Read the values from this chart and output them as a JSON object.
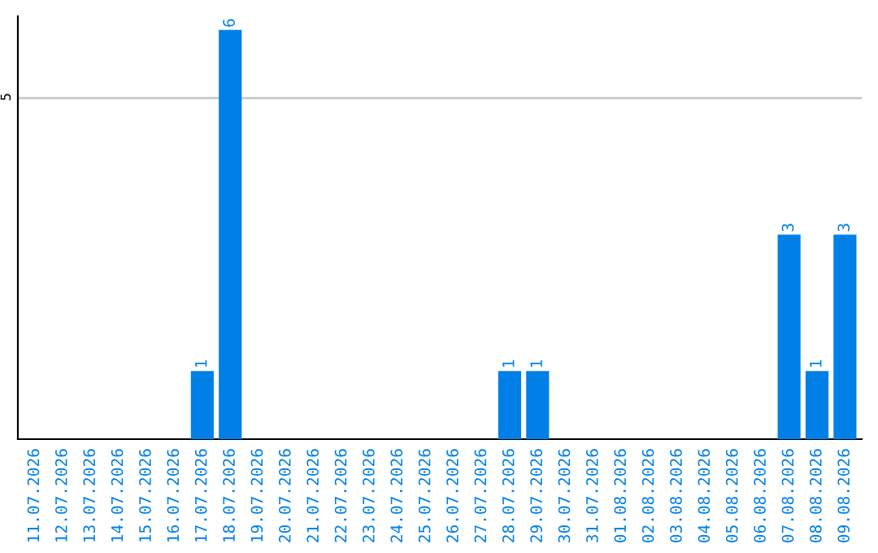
{
  "chart_data": {
    "type": "bar",
    "categories": [
      "11.07.2026",
      "12.07.2026",
      "13.07.2026",
      "14.07.2026",
      "15.07.2026",
      "16.07.2026",
      "17.07.2026",
      "18.07.2026",
      "19.07.2026",
      "20.07.2026",
      "21.07.2026",
      "22.07.2026",
      "23.07.2026",
      "24.07.2026",
      "25.07.2026",
      "26.07.2026",
      "27.07.2026",
      "28.07.2026",
      "29.07.2026",
      "30.07.2026",
      "31.07.2026",
      "01.08.2026",
      "02.08.2026",
      "03.08.2026",
      "04.08.2026",
      "05.08.2026",
      "06.08.2026",
      "07.08.2026",
      "08.08.2026",
      "09.08.2026"
    ],
    "values": [
      0,
      0,
      0,
      0,
      0,
      0,
      1,
      6,
      0,
      0,
      0,
      0,
      0,
      0,
      0,
      0,
      0,
      1,
      1,
      0,
      0,
      0,
      0,
      0,
      0,
      0,
      0,
      3,
      1,
      3
    ],
    "color": "#0080e6",
    "value_labels": [
      null,
      null,
      null,
      null,
      null,
      null,
      "1",
      "6",
      null,
      null,
      null,
      null,
      null,
      null,
      null,
      null,
      null,
      "1",
      "1",
      null,
      null,
      null,
      null,
      null,
      null,
      null,
      null,
      "3",
      "1",
      "3"
    ],
    "ylim": [
      0,
      6.2
    ],
    "yticks": [
      5
    ],
    "grid": "y",
    "legend": false
  }
}
